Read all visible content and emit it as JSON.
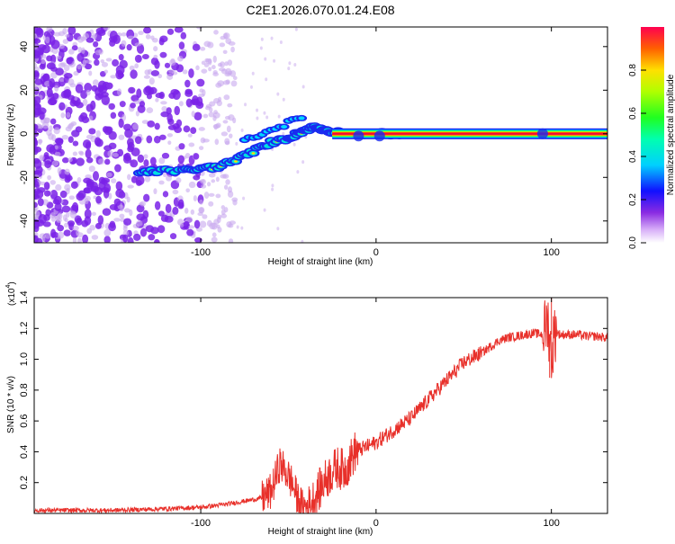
{
  "title": "C2E1.2026.070.01.24.E08",
  "colors": {
    "axis": "#000000",
    "snr_line": "#e8302a",
    "band": "#f00a3c",
    "scatter_main": "#7a22e8",
    "scatter_light": "#c8a8ee"
  },
  "chart_data": [
    {
      "type": "heatmap",
      "xlabel": "Height of straight line (km)",
      "ylabel": "Frequency (Hz)",
      "xlim": [
        -195,
        132
      ],
      "ylim": [
        -50,
        49
      ],
      "xticks": [
        -100,
        0,
        100
      ],
      "yticks": [
        -40,
        -20,
        0,
        20,
        40
      ],
      "trace_points": [
        {
          "x": -135,
          "y": -18
        },
        {
          "x": -125,
          "y": -17
        },
        {
          "x": -110,
          "y": -17
        },
        {
          "x": -100,
          "y": -16
        },
        {
          "x": -90,
          "y": -15
        },
        {
          "x": -80,
          "y": -12
        },
        {
          "x": -70,
          "y": -8
        },
        {
          "x": -60,
          "y": -4
        },
        {
          "x": -50,
          "y": -2
        },
        {
          "x": -45,
          "y": 0
        },
        {
          "x": -40,
          "y": 2
        },
        {
          "x": -35,
          "y": 3
        },
        {
          "x": -30,
          "y": 2
        },
        {
          "x": -25,
          "y": 1
        },
        {
          "x": -15,
          "y": 0
        },
        {
          "x": -5,
          "y": 0
        },
        {
          "x": 5,
          "y": 0
        },
        {
          "x": 15,
          "y": 0
        }
      ],
      "band": {
        "x_start": -25,
        "x_end": 132,
        "y": 0
      },
      "colorbar": {
        "label": "Normalized spectral amplitude",
        "ticks": [
          0.0,
          0.2,
          0.4,
          0.6,
          0.8
        ],
        "tick_labels": [
          "0.0",
          "0.2",
          "0.4",
          "0.6",
          "0.8"
        ]
      }
    },
    {
      "type": "line",
      "xlabel": "Height of straight line (km)",
      "ylabel": "SNR (10 * v/v)",
      "scale_label": "(x10",
      "scale_exp": "4",
      "scale_close": ")",
      "xlim": [
        -195,
        132
      ],
      "ylim": [
        0.0,
        1.4
      ],
      "xticks": [
        -100,
        0,
        100
      ],
      "yticks": [
        0.2,
        0.4,
        0.6,
        0.8,
        1.0,
        1.2,
        1.4
      ],
      "ytick_labels": [
        "0.2",
        "0.4",
        "0.6",
        "0.8",
        "1.0",
        "1.2",
        "1.4"
      ],
      "series": [
        {
          "name": "SNR",
          "x": [
            -195,
            -150,
            -120,
            -100,
            -85,
            -75,
            -65,
            -60,
            -57,
            -55,
            -52,
            -48,
            -45,
            -42,
            -38,
            -34,
            -30,
            -26,
            -22,
            -18,
            -15,
            -12,
            -8,
            -4,
            0,
            5,
            10,
            15,
            20,
            25,
            30,
            35,
            40,
            45,
            50,
            55,
            60,
            65,
            70,
            75,
            80,
            85,
            90,
            95,
            98,
            100,
            102,
            105,
            110,
            115,
            120,
            125,
            132
          ],
          "values": [
            0.02,
            0.02,
            0.03,
            0.04,
            0.06,
            0.08,
            0.1,
            0.14,
            0.24,
            0.32,
            0.28,
            0.2,
            0.1,
            0.04,
            0.05,
            0.12,
            0.2,
            0.26,
            0.3,
            0.28,
            0.34,
            0.4,
            0.42,
            0.44,
            0.46,
            0.5,
            0.54,
            0.58,
            0.62,
            0.68,
            0.74,
            0.8,
            0.86,
            0.92,
            0.98,
            1.01,
            1.04,
            1.08,
            1.12,
            1.14,
            1.15,
            1.16,
            1.17,
            1.16,
            1.25,
            1.02,
            1.18,
            1.16,
            1.16,
            1.16,
            1.15,
            1.15,
            1.14
          ]
        }
      ],
      "peak_annotations": [
        {
          "x": 100,
          "y": 1.43
        },
        {
          "x": 99,
          "y": 0.88
        }
      ]
    }
  ]
}
